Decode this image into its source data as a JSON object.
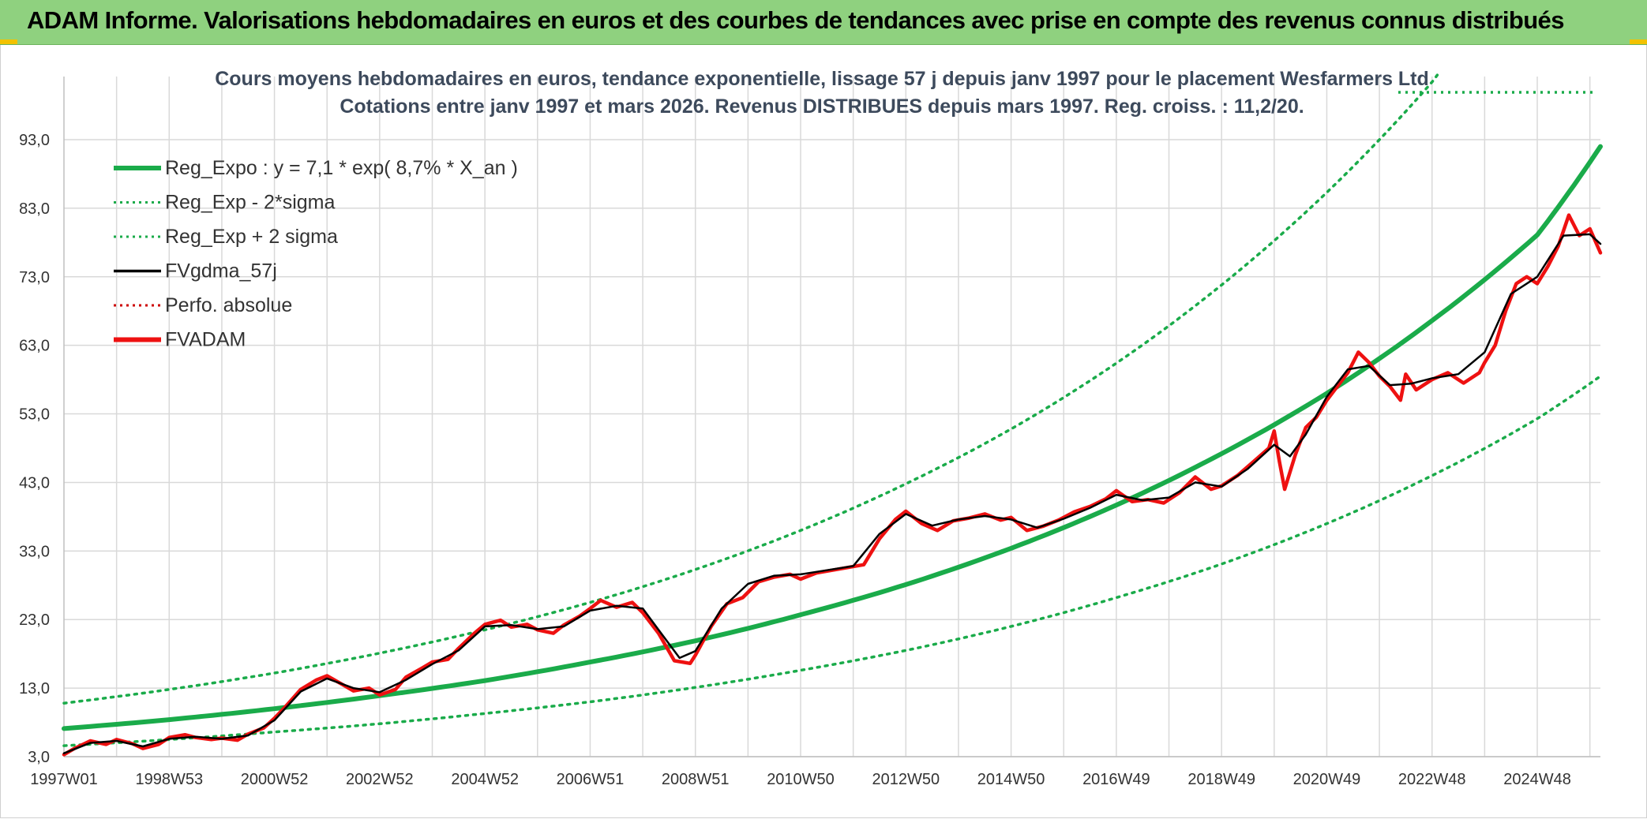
{
  "header": {
    "title": "ADAM Informe. Valorisations hebdomadaires en euros et des courbes de tendances avec prise en compte des revenus connus distribués"
  },
  "colors": {
    "banner": "#8fd17f",
    "reg_expo": "#1aab4a",
    "sigma": "#1aab4a",
    "fvgdma": "#000000",
    "perfo": "#cc0000",
    "fvadam": "#ee1111",
    "grid": "#d9d9d9"
  },
  "chart_data": {
    "type": "line",
    "title": "Cours moyens hebdomadaires en euros, tendance exponentielle, lissage 57 j depuis janv 1997 pour le placement Wesfarmers Ltd",
    "subtitle": "Cotations entre janv 1997 et mars 2026. Revenus DISTRIBUES depuis mars 1997. Reg. croiss. : 11,2/20.",
    "xlabel": "",
    "ylabel": "",
    "x_range": [
      1997.0,
      2026.2
    ],
    "ylim": [
      3,
      98
    ],
    "y_ticks": [
      "3,0",
      "13,0",
      "23,0",
      "33,0",
      "43,0",
      "53,0",
      "63,0",
      "73,0",
      "83,0",
      "93,0"
    ],
    "y_tick_values": [
      3,
      13,
      23,
      33,
      43,
      53,
      63,
      73,
      83,
      93
    ],
    "x_ticks": [
      "1997W01",
      "1998W53",
      "2000W52",
      "2002W52",
      "2004W52",
      "2006W51",
      "2008W51",
      "2010W50",
      "2012W50",
      "2014W50",
      "2016W49",
      "2018W49",
      "2020W49",
      "2022W48",
      "2024W48"
    ],
    "x_tick_years": [
      1997.0,
      1999.0,
      2001.0,
      2003.0,
      2005.0,
      2007.0,
      2009.0,
      2011.0,
      2013.0,
      2015.0,
      2017.0,
      2019.0,
      2021.0,
      2023.0,
      2025.0
    ],
    "legend": [
      {
        "label": "Reg_Expo : y = 7,1 * exp( 8,7% *  X_an )",
        "style": "thick-solid",
        "color": "#1aab4a"
      },
      {
        "label": "Reg_Exp - 2*sigma",
        "style": "dotted",
        "color": "#1aab4a"
      },
      {
        "label": "Reg_Exp + 2 sigma",
        "style": "dotted",
        "color": "#1aab4a"
      },
      {
        "label": "FVgdma_57j",
        "style": "solid",
        "color": "#000000"
      },
      {
        "label": "Perfo. absolue",
        "style": "dotted",
        "color": "#cc0000"
      },
      {
        "label": "FVADAM",
        "style": "thick-solid",
        "color": "#ee1111"
      }
    ],
    "legend_position": "top-left",
    "series": [
      {
        "name": "Reg_Expo",
        "x": [
          1997,
          1999,
          2001,
          2003,
          2005,
          2007,
          2009,
          2011,
          2013,
          2015,
          2017,
          2019,
          2021,
          2023,
          2025,
          2026.2
        ],
        "values": [
          7.1,
          8.4,
          10.0,
          11.9,
          14.1,
          16.8,
          19.9,
          23.7,
          28.1,
          33.4,
          39.7,
          47.2,
          56.0,
          66.6,
          79.1,
          92.0
        ]
      },
      {
        "name": "Reg_Exp - 2*sigma",
        "x": [
          1997,
          1999,
          2001,
          2003,
          2005,
          2007,
          2009,
          2011,
          2013,
          2015,
          2017,
          2019,
          2021,
          2023,
          2025,
          2026.2
        ],
        "values": [
          4.6,
          5.5,
          6.6,
          7.8,
          9.3,
          11.0,
          13.1,
          15.6,
          18.5,
          22.0,
          26.2,
          31.1,
          37.0,
          44.0,
          52.3,
          58.5
        ]
      },
      {
        "name": "Reg_Exp + 2 sigma",
        "x": [
          1997,
          1999,
          2001,
          2003,
          2005,
          2007,
          2009,
          2011,
          2013,
          2015,
          2017,
          2019,
          2021,
          2023,
          2023.3
        ],
        "values": [
          10.8,
          12.8,
          15.2,
          18.1,
          21.5,
          25.5,
          30.3,
          36.0,
          42.8,
          50.8,
          60.4,
          71.8,
          85.3,
          101.4,
          104.5
        ]
      },
      {
        "name": "FVADAM",
        "x": [
          1997.0,
          1997.2,
          1997.5,
          1997.8,
          1998.0,
          1998.3,
          1998.5,
          1998.8,
          1999.0,
          1999.3,
          1999.5,
          1999.8,
          2000.0,
          2000.3,
          2000.5,
          2000.8,
          2001.0,
          2001.2,
          2001.5,
          2001.8,
          2002.0,
          2002.3,
          2002.5,
          2002.8,
          2003.0,
          2003.3,
          2003.5,
          2003.8,
          2004.0,
          2004.3,
          2004.5,
          2004.8,
          2005.0,
          2005.3,
          2005.5,
          2005.8,
          2006.0,
          2006.3,
          2006.5,
          2006.8,
          2007.0,
          2007.2,
          2007.5,
          2007.8,
          2008.0,
          2008.3,
          2008.6,
          2008.9,
          2009.0,
          2009.3,
          2009.6,
          2009.9,
          2010.2,
          2010.5,
          2010.8,
          2011.0,
          2011.3,
          2011.6,
          2011.9,
          2012.2,
          2012.5,
          2012.8,
          2013.0,
          2013.3,
          2013.6,
          2013.9,
          2014.2,
          2014.5,
          2014.8,
          2015.0,
          2015.3,
          2015.6,
          2015.9,
          2016.2,
          2016.5,
          2016.8,
          2017.0,
          2017.3,
          2017.6,
          2017.9,
          2018.2,
          2018.5,
          2018.8,
          2019.0,
          2019.3,
          2019.6,
          2019.9,
          2020.0,
          2020.1,
          2020.2,
          2020.4,
          2020.6,
          2020.8,
          2021.0,
          2021.2,
          2021.4,
          2021.6,
          2021.8,
          2022.0,
          2022.2,
          2022.4,
          2022.5,
          2022.7,
          2023.0,
          2023.3,
          2023.6,
          2023.9,
          2024.0,
          2024.2,
          2024.4,
          2024.6,
          2024.8,
          2025.0,
          2025.2,
          2025.4,
          2025.6,
          2025.8,
          2026.0,
          2026.2
        ],
        "values": [
          3.3,
          4.2,
          5.3,
          4.8,
          5.5,
          4.9,
          4.2,
          4.8,
          5.8,
          6.2,
          5.8,
          5.5,
          5.7,
          5.4,
          6.3,
          7.2,
          8.6,
          10.2,
          12.8,
          14.2,
          14.8,
          13.5,
          12.6,
          13.0,
          12.0,
          12.8,
          14.6,
          15.9,
          16.8,
          17.2,
          18.8,
          21.0,
          22.3,
          22.9,
          21.9,
          22.3,
          21.5,
          21.0,
          22.2,
          23.5,
          24.6,
          25.8,
          24.8,
          25.5,
          24.0,
          21.0,
          17.0,
          16.6,
          17.8,
          22.0,
          25.3,
          26.2,
          28.5,
          29.2,
          29.6,
          28.9,
          29.8,
          30.2,
          30.6,
          31.0,
          34.8,
          37.6,
          38.8,
          37.0,
          36.0,
          37.4,
          37.8,
          38.4,
          37.5,
          37.9,
          36.0,
          36.6,
          37.5,
          38.7,
          39.5,
          40.6,
          41.8,
          40.2,
          40.5,
          40.0,
          41.5,
          43.8,
          42.0,
          42.5,
          44.0,
          46.0,
          48.0,
          50.5,
          46.0,
          42.0,
          47.0,
          51.0,
          52.5,
          55.0,
          57.0,
          59.0,
          62.0,
          60.5,
          58.5,
          57.0,
          55.0,
          58.8,
          56.5,
          58.0,
          59.0,
          57.5,
          59.0,
          60.5,
          63.0,
          68.0,
          72.0,
          73.0,
          72.0,
          74.5,
          77.5,
          82.0,
          79.0,
          80.0,
          76.5
        ]
      },
      {
        "name": "FVgdma_57j",
        "x": [
          1997.0,
          1997.5,
          1998.0,
          1998.5,
          1999.0,
          1999.5,
          2000.0,
          2000.5,
          2001.0,
          2001.5,
          2002.0,
          2002.5,
          2003.0,
          2003.5,
          2004.0,
          2004.5,
          2005.0,
          2005.5,
          2006.0,
          2006.5,
          2007.0,
          2007.5,
          2008.0,
          2008.3,
          2008.7,
          2009.0,
          2009.5,
          2010.0,
          2010.5,
          2011.0,
          2011.5,
          2012.0,
          2012.5,
          2013.0,
          2013.5,
          2014.0,
          2014.5,
          2015.0,
          2015.5,
          2016.0,
          2016.5,
          2017.0,
          2017.5,
          2018.0,
          2018.5,
          2019.0,
          2019.5,
          2020.0,
          2020.3,
          2020.6,
          2021.0,
          2021.4,
          2021.8,
          2022.2,
          2022.6,
          2023.0,
          2023.5,
          2024.0,
          2024.5,
          2025.0,
          2025.5,
          2026.0,
          2026.2
        ],
        "values": [
          3.5,
          5.0,
          5.3,
          4.5,
          5.6,
          5.9,
          5.6,
          6.1,
          8.3,
          12.5,
          14.4,
          13.0,
          12.4,
          14.2,
          16.5,
          18.5,
          22.0,
          22.2,
          21.6,
          22.0,
          24.3,
          25.0,
          24.6,
          21.5,
          17.4,
          18.4,
          24.6,
          28.2,
          29.4,
          29.6,
          30.2,
          30.8,
          35.5,
          38.4,
          36.7,
          37.6,
          38.1,
          37.6,
          36.4,
          37.7,
          39.3,
          41.2,
          40.4,
          40.8,
          43.0,
          42.4,
          45.0,
          48.5,
          46.8,
          50.0,
          55.5,
          59.5,
          60.0,
          57.2,
          57.4,
          58.2,
          58.8,
          62.0,
          70.5,
          73.0,
          79.0,
          79.2,
          77.8
        ]
      }
    ]
  }
}
